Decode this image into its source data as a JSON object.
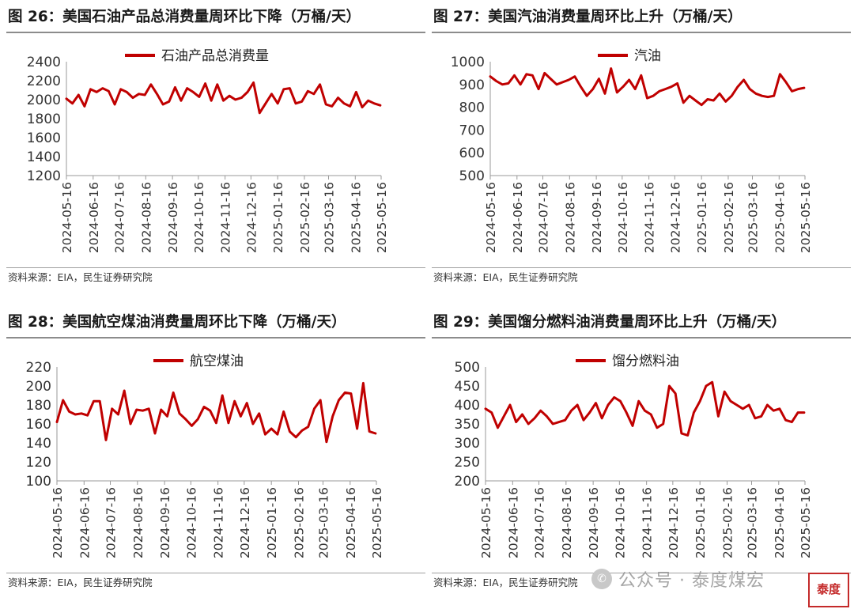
{
  "line_color": "#c00000",
  "x_tick_labels": [
    "2024-05-16",
    "2024-06-16",
    "2024-07-16",
    "2024-08-16",
    "2024-09-16",
    "2024-10-16",
    "2024-11-16",
    "2024-12-16",
    "2025-01-16",
    "2025-02-16",
    "2025-03-16",
    "2025-04-16",
    "2025-05-16"
  ],
  "panels": [
    {
      "title": "图 26：美国石油产品总消费量周环比下降（万桶/天）",
      "source": "资料来源：EIA，民生证券研究院"
    },
    {
      "title": "图 27：美国汽油消费量周环比上升（万桶/天）",
      "source": "资料来源：EIA，民生证券研究院"
    },
    {
      "title": "图 28：美国航空煤油消费量周环比下降（万桶/天）",
      "source": "资料来源：EIA，民生证券研究院"
    },
    {
      "title": "图 29：美国馏分燃料油消费量周环比上升（万桶/天）",
      "source": "资料来源：EIA，民生证券研究院"
    }
  ],
  "watermark": {
    "icon": "wechat-icon",
    "text": "公众号 · 泰度煤宏",
    "stamp": "泰度"
  },
  "chart_data": [
    {
      "type": "line",
      "title": "",
      "x": [
        "2024-05-16",
        "2024-05-23",
        "2024-05-30",
        "2024-06-06",
        "2024-06-13",
        "2024-06-20",
        "2024-06-27",
        "2024-07-04",
        "2024-07-11",
        "2024-07-18",
        "2024-07-25",
        "2024-08-01",
        "2024-08-08",
        "2024-08-15",
        "2024-08-22",
        "2024-08-29",
        "2024-09-05",
        "2024-09-12",
        "2024-09-19",
        "2024-09-26",
        "2024-10-03",
        "2024-10-10",
        "2024-10-17",
        "2024-10-24",
        "2024-10-31",
        "2024-11-07",
        "2024-11-14",
        "2024-11-21",
        "2024-11-28",
        "2024-12-05",
        "2024-12-12",
        "2024-12-19",
        "2024-12-26",
        "2025-01-02",
        "2025-01-09",
        "2025-01-16",
        "2025-01-23",
        "2025-01-30",
        "2025-02-06",
        "2025-02-13",
        "2025-02-20",
        "2025-02-27",
        "2025-03-06",
        "2025-03-13",
        "2025-03-20",
        "2025-03-27",
        "2025-04-03",
        "2025-04-10",
        "2025-04-17",
        "2025-04-24",
        "2025-05-01",
        "2025-05-08",
        "2025-05-15"
      ],
      "series": [
        {
          "name": "石油产品总消费量",
          "values": [
            2010,
            1960,
            2050,
            1930,
            2110,
            2080,
            2120,
            2090,
            1950,
            2110,
            2080,
            2020,
            2060,
            2050,
            2160,
            2060,
            1950,
            1980,
            2130,
            1990,
            2120,
            2080,
            2030,
            2170,
            1990,
            2160,
            1990,
            2040,
            2000,
            2020,
            2080,
            2180,
            1860,
            1960,
            2060,
            1960,
            2110,
            2120,
            1960,
            1980,
            2090,
            2060,
            2160,
            1950,
            1930,
            2020,
            1960,
            1930,
            2080,
            1920,
            1990,
            1960,
            1940
          ]
        }
      ],
      "ylim": [
        1200,
        2400
      ],
      "yticks": [
        1200,
        1400,
        1600,
        1800,
        2000,
        2200,
        2400
      ]
    },
    {
      "type": "line",
      "title": "",
      "x": [
        "2024-05-16",
        "2024-05-23",
        "2024-05-30",
        "2024-06-06",
        "2024-06-13",
        "2024-06-20",
        "2024-06-27",
        "2024-07-04",
        "2024-07-11",
        "2024-07-18",
        "2024-07-25",
        "2024-08-01",
        "2024-08-08",
        "2024-08-15",
        "2024-08-22",
        "2024-08-29",
        "2024-09-05",
        "2024-09-12",
        "2024-09-19",
        "2024-09-26",
        "2024-10-03",
        "2024-10-10",
        "2024-10-17",
        "2024-10-24",
        "2024-10-31",
        "2024-11-07",
        "2024-11-14",
        "2024-11-21",
        "2024-11-28",
        "2024-12-05",
        "2024-12-12",
        "2024-12-19",
        "2024-12-26",
        "2025-01-02",
        "2025-01-09",
        "2025-01-16",
        "2025-01-23",
        "2025-01-30",
        "2025-02-06",
        "2025-02-13",
        "2025-02-20",
        "2025-02-27",
        "2025-03-06",
        "2025-03-13",
        "2025-03-20",
        "2025-03-27",
        "2025-04-03",
        "2025-04-10",
        "2025-04-17",
        "2025-04-24",
        "2025-05-01",
        "2025-05-08",
        "2025-05-15"
      ],
      "series": [
        {
          "name": "汽油",
          "values": [
            935,
            915,
            900,
            905,
            940,
            900,
            945,
            940,
            880,
            950,
            925,
            900,
            910,
            920,
            935,
            890,
            850,
            880,
            925,
            860,
            970,
            865,
            890,
            920,
            880,
            940,
            840,
            850,
            870,
            880,
            890,
            905,
            820,
            850,
            830,
            810,
            835,
            830,
            860,
            825,
            850,
            890,
            920,
            880,
            860,
            850,
            845,
            850,
            945,
            910,
            870,
            880,
            885
          ]
        }
      ],
      "ylim": [
        500,
        1000
      ],
      "yticks": [
        500,
        600,
        700,
        800,
        900,
        1000
      ]
    },
    {
      "type": "line",
      "title": "",
      "x": [
        "2024-05-16",
        "2024-05-23",
        "2024-05-30",
        "2024-06-06",
        "2024-06-13",
        "2024-06-20",
        "2024-06-27",
        "2024-07-04",
        "2024-07-11",
        "2024-07-18",
        "2024-07-25",
        "2024-08-01",
        "2024-08-08",
        "2024-08-15",
        "2024-08-22",
        "2024-08-29",
        "2024-09-05",
        "2024-09-12",
        "2024-09-19",
        "2024-09-26",
        "2024-10-03",
        "2024-10-10",
        "2024-10-17",
        "2024-10-24",
        "2024-10-31",
        "2024-11-07",
        "2024-11-14",
        "2024-11-21",
        "2024-11-28",
        "2024-12-05",
        "2024-12-12",
        "2024-12-19",
        "2024-12-26",
        "2025-01-02",
        "2025-01-09",
        "2025-01-16",
        "2025-01-23",
        "2025-01-30",
        "2025-02-06",
        "2025-02-13",
        "2025-02-20",
        "2025-02-27",
        "2025-03-06",
        "2025-03-13",
        "2025-03-20",
        "2025-03-27",
        "2025-04-03",
        "2025-04-10",
        "2025-04-17",
        "2025-04-24",
        "2025-05-01",
        "2025-05-08",
        "2025-05-15"
      ],
      "series": [
        {
          "name": "航空煤油",
          "values": [
            162,
            185,
            173,
            170,
            171,
            169,
            184,
            184,
            143,
            176,
            170,
            195,
            160,
            175,
            174,
            176,
            150,
            175,
            168,
            193,
            171,
            165,
            158,
            165,
            178,
            174,
            161,
            190,
            161,
            184,
            168,
            182,
            160,
            171,
            149,
            155,
            149,
            173,
            152,
            146,
            153,
            157,
            176,
            185,
            141,
            168,
            185,
            193,
            192,
            155,
            203,
            152,
            150
          ]
        }
      ],
      "ylim": [
        100,
        220
      ],
      "yticks": [
        100,
        120,
        140,
        160,
        180,
        200,
        220
      ]
    },
    {
      "type": "line",
      "title": "",
      "x": [
        "2024-05-16",
        "2024-05-23",
        "2024-05-30",
        "2024-06-06",
        "2024-06-13",
        "2024-06-20",
        "2024-06-27",
        "2024-07-04",
        "2024-07-11",
        "2024-07-18",
        "2024-07-25",
        "2024-08-01",
        "2024-08-08",
        "2024-08-15",
        "2024-08-22",
        "2024-08-29",
        "2024-09-05",
        "2024-09-12",
        "2024-09-19",
        "2024-09-26",
        "2024-10-03",
        "2024-10-10",
        "2024-10-17",
        "2024-10-24",
        "2024-10-31",
        "2024-11-07",
        "2024-11-14",
        "2024-11-21",
        "2024-11-28",
        "2024-12-05",
        "2024-12-12",
        "2024-12-19",
        "2024-12-26",
        "2025-01-02",
        "2025-01-09",
        "2025-01-16",
        "2025-01-23",
        "2025-01-30",
        "2025-02-06",
        "2025-02-13",
        "2025-02-20",
        "2025-02-27",
        "2025-03-06",
        "2025-03-13",
        "2025-03-20",
        "2025-03-27",
        "2025-04-03",
        "2025-04-10",
        "2025-04-17",
        "2025-04-24",
        "2025-05-01",
        "2025-05-08",
        "2025-05-15"
      ],
      "series": [
        {
          "name": "馏分燃料油",
          "values": [
            390,
            380,
            340,
            370,
            400,
            355,
            375,
            350,
            365,
            385,
            370,
            350,
            355,
            360,
            385,
            400,
            360,
            380,
            405,
            365,
            400,
            420,
            410,
            380,
            345,
            410,
            385,
            375,
            340,
            350,
            450,
            430,
            325,
            320,
            380,
            410,
            450,
            460,
            370,
            435,
            410,
            400,
            390,
            400,
            365,
            370,
            400,
            385,
            390,
            360,
            355,
            380,
            380
          ]
        }
      ],
      "ylim": [
        200,
        500
      ],
      "yticks": [
        200,
        250,
        300,
        350,
        400,
        450,
        500
      ]
    }
  ]
}
